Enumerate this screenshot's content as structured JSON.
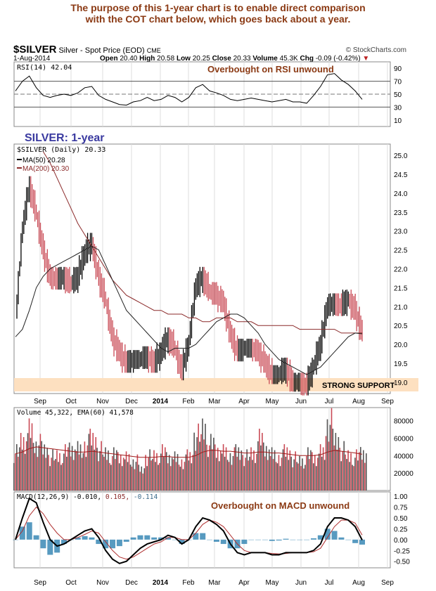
{
  "note": {
    "line1": "The purpose of this 1-year chart is to enable direct comparison",
    "line2": "with the COT chart below, which goes back about a year."
  },
  "header": {
    "symbol": "$SILVER",
    "name": "Silver - Spot Price (EOD)",
    "exchange": "CME",
    "copyright": "© StockCharts.com",
    "date": "1-Aug-2014",
    "open_l": "Open",
    "open": "20.40",
    "high_l": "High",
    "high": "20.58",
    "low_l": "Low",
    "low": "20.25",
    "close_l": "Close",
    "close": "20.33",
    "vol_l": "Volume",
    "vol": "45.3K",
    "chg_l": "Chg",
    "chg": "-0.09 (-0.42%)"
  },
  "colors": {
    "annot": "#8b3a14",
    "ma200": "#8b2a2a",
    "up": "#555555",
    "down": "#c94a55",
    "support": "#fde0c0",
    "title": "#3a3aa0"
  },
  "chart_data": [
    {
      "type": "line",
      "title": "RSI(14) 42.04",
      "annotation": "Overbought on RSI unwound",
      "yticks": [
        "90",
        "70",
        "50",
        "30",
        "10"
      ],
      "ylim": [
        0,
        100
      ],
      "values": [
        55,
        70,
        78,
        60,
        48,
        45,
        48,
        50,
        48,
        52,
        60,
        62,
        48,
        42,
        38,
        34,
        33,
        38,
        40,
        45,
        40,
        42,
        48,
        45,
        38,
        45,
        60,
        65,
        55,
        52,
        48,
        42,
        40,
        42,
        44,
        42,
        40,
        38,
        40,
        42,
        38,
        38,
        36,
        48,
        62,
        80,
        82,
        72,
        65,
        55,
        42
      ]
    },
    {
      "type": "candlestick",
      "title": "$SILVER (Daily) 20.33",
      "legend": [
        "MA(50) 20.28",
        "MA(200) 20.30"
      ],
      "annotation": "SILVER: 1-year",
      "support_label": "STRONG SUPPORT",
      "yticks": [
        "25.0",
        "24.5",
        "24.0",
        "23.5",
        "23.0",
        "22.5",
        "22.0",
        "21.5",
        "21.0",
        "20.5",
        "20.0",
        "19.5",
        "19.0"
      ],
      "ylim": [
        18.7,
        25.3
      ],
      "xticks": [
        "Sep",
        "Oct",
        "Nov",
        "Dec",
        "2014",
        "Feb",
        "Mar",
        "Apr",
        "May",
        "Jun",
        "Jul",
        "Aug",
        "Sep"
      ],
      "close": [
        20.5,
        23.0,
        24.2,
        23.5,
        22.5,
        21.8,
        21.7,
        21.8,
        21.6,
        21.8,
        22.4,
        22.7,
        21.8,
        21.2,
        20.2,
        19.8,
        19.5,
        19.6,
        19.6,
        19.7,
        19.5,
        19.8,
        20.2,
        19.9,
        19.3,
        20.0,
        21.5,
        21.8,
        21.4,
        21.3,
        21.1,
        20.3,
        19.8,
        19.9,
        19.9,
        19.8,
        19.5,
        19.2,
        19.2,
        19.4,
        19.0,
        19.0,
        18.9,
        19.4,
        20.0,
        21.0,
        21.1,
        21.0,
        21.2,
        20.9,
        20.33
      ],
      "ma50": [
        20.2,
        20.4,
        20.9,
        21.5,
        21.8,
        22.0,
        22.1,
        22.2,
        22.3,
        22.4,
        22.5,
        22.6,
        22.5,
        22.1,
        21.7,
        21.3,
        20.9,
        20.7,
        20.5,
        20.3,
        20.1,
        19.9,
        19.8,
        19.9,
        19.9,
        19.9,
        20.0,
        20.2,
        20.4,
        20.6,
        20.7,
        20.8,
        20.8,
        20.7,
        20.5,
        20.3,
        20.0,
        19.8,
        19.6,
        19.5,
        19.4,
        19.3,
        19.2,
        19.3,
        19.4,
        19.6,
        19.8,
        20.0,
        20.2,
        20.3,
        20.28
      ],
      "ma200": [
        null,
        null,
        null,
        null,
        25.1,
        24.8,
        24.4,
        24.0,
        23.6,
        23.2,
        22.9,
        22.6,
        22.3,
        22.0,
        21.7,
        21.5,
        21.3,
        21.2,
        21.1,
        21.0,
        20.9,
        20.9,
        20.8,
        20.8,
        20.8,
        20.7,
        20.7,
        20.6,
        20.6,
        20.7,
        20.7,
        20.7,
        20.6,
        20.6,
        20.6,
        20.5,
        20.5,
        20.5,
        20.5,
        20.5,
        20.5,
        20.4,
        20.4,
        20.4,
        20.4,
        20.4,
        20.4,
        20.3,
        20.3,
        20.3,
        20.3
      ]
    },
    {
      "type": "bar",
      "title": "Volume 45,322, EMA(60) 41,578",
      "yticks": [
        "80000",
        "60000",
        "40000",
        "20000"
      ],
      "ylim": [
        0,
        95000
      ],
      "values": [
        45000,
        60000,
        70000,
        55000,
        48000,
        40000,
        42000,
        45000,
        50000,
        48000,
        55000,
        60000,
        48000,
        45000,
        42000,
        40000,
        38000,
        35000,
        25000,
        40000,
        42000,
        45000,
        40000,
        38000,
        35000,
        40000,
        65000,
        75000,
        55000,
        48000,
        45000,
        42000,
        45000,
        40000,
        45000,
        60000,
        50000,
        42000,
        40000,
        45000,
        38000,
        36000,
        42000,
        40000,
        45000,
        80000,
        60000,
        48000,
        42000,
        40000,
        45322
      ],
      "ema": [
        42000,
        44000,
        48000,
        50000,
        49000,
        48000,
        47000,
        46000,
        45000,
        44000,
        44000,
        45000,
        44000,
        43000,
        42000,
        41000,
        40000,
        39000,
        38000,
        38000,
        38000,
        39000,
        39000,
        38000,
        38000,
        38000,
        40000,
        44000,
        46000,
        46000,
        45000,
        45000,
        44000,
        43000,
        43000,
        44000,
        44000,
        43000,
        43000,
        42000,
        41000,
        40000,
        40000,
        40000,
        41000,
        44000,
        46000,
        45000,
        44000,
        43000,
        41578
      ]
    },
    {
      "type": "line",
      "title": "MACD(12,26,9)",
      "macd": "-0.010",
      "signal": "0.105",
      "hist": "-0.114",
      "annotation": "Overbought on MACD unwound",
      "yticks": [
        "1.00",
        "0.75",
        "0.50",
        "0.25",
        "0.00",
        "-0.25",
        "-0.50"
      ],
      "ylim": [
        -0.65,
        1.1
      ],
      "macd_values": [
        0.0,
        0.5,
        0.95,
        0.85,
        0.4,
        0.0,
        -0.15,
        -0.1,
        0.0,
        0.1,
        0.2,
        0.25,
        0.05,
        -0.25,
        -0.45,
        -0.55,
        -0.5,
        -0.35,
        -0.2,
        -0.1,
        -0.05,
        0.0,
        0.1,
        0.05,
        -0.1,
        0.0,
        0.3,
        0.5,
        0.45,
        0.35,
        0.2,
        -0.1,
        -0.3,
        -0.35,
        -0.3,
        -0.3,
        -0.3,
        -0.35,
        -0.35,
        -0.3,
        -0.3,
        -0.3,
        -0.3,
        -0.25,
        -0.1,
        0.3,
        0.5,
        0.5,
        0.45,
        0.3,
        -0.01
      ],
      "signal_values": [
        0.0,
        0.2,
        0.55,
        0.75,
        0.6,
        0.35,
        0.15,
        0.0,
        0.0,
        0.05,
        0.12,
        0.2,
        0.15,
        -0.05,
        -0.25,
        -0.4,
        -0.45,
        -0.4,
        -0.3,
        -0.2,
        -0.1,
        -0.05,
        0.05,
        0.05,
        0.0,
        0.0,
        0.15,
        0.35,
        0.45,
        0.4,
        0.3,
        0.1,
        -0.1,
        -0.25,
        -0.3,
        -0.3,
        -0.3,
        -0.32,
        -0.33,
        -0.32,
        -0.3,
        -0.3,
        -0.3,
        -0.28,
        -0.2,
        0.05,
        0.3,
        0.45,
        0.45,
        0.38,
        0.105
      ]
    }
  ]
}
